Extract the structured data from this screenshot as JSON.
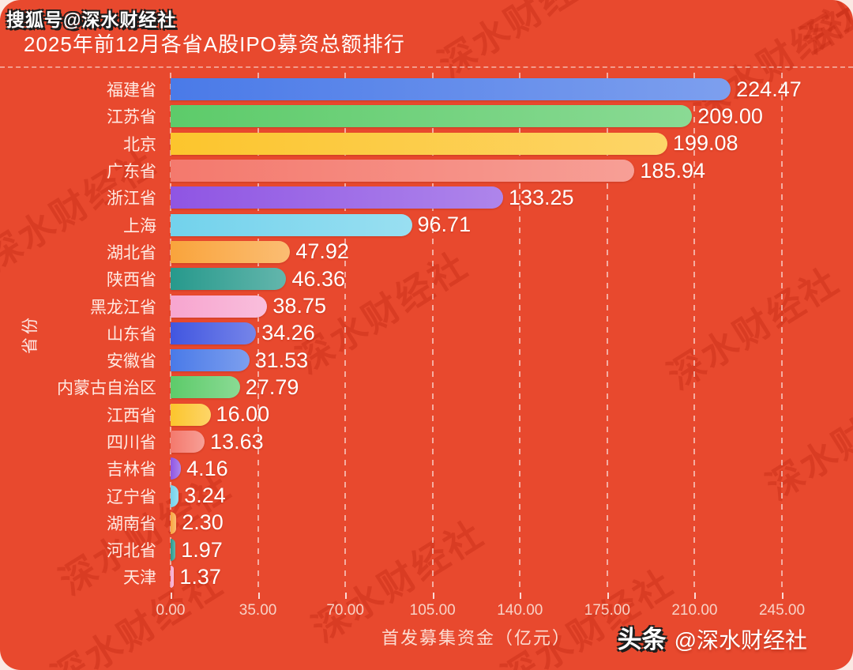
{
  "page": {
    "watermark_text": "深水财经社",
    "card_bg": "#E8492E",
    "outer_bg": "#FBE9E3"
  },
  "header": {
    "badge": "搜狐号@深水财经社",
    "title": "2025年前12月各省A股IPO募资总额排行"
  },
  "footer": {
    "brand_bold": "头条",
    "brand_handle": "@深水财经社"
  },
  "chart_data": {
    "type": "bar",
    "orientation": "horizontal",
    "title": "2025年前12月各省A股IPO募资总额排行",
    "xlabel": "首发募集资金（亿元）",
    "ylabel": "省份",
    "xlim": [
      0,
      245
    ],
    "x_ticks": [
      "0.00",
      "35.00",
      "70.00",
      "105.00",
      "140.00",
      "175.00",
      "210.00",
      "245.00"
    ],
    "grid": "dashed-vertical-white",
    "value_format": "2-decimals",
    "categories": [
      "福建省",
      "江苏省",
      "北京",
      "广东省",
      "浙江省",
      "上海",
      "湖北省",
      "陕西省",
      "黑龙江省",
      "山东省",
      "安徽省",
      "内蒙古自治区",
      "江西省",
      "四川省",
      "吉林省",
      "辽宁省",
      "湖南省",
      "河北省",
      "天津"
    ],
    "values": [
      224.47,
      209.0,
      199.08,
      185.94,
      133.25,
      96.71,
      47.92,
      46.36,
      38.75,
      34.26,
      31.53,
      27.79,
      16.0,
      13.63,
      4.16,
      3.24,
      2.3,
      1.97,
      1.37
    ],
    "bar_colors": [
      "#4A7AE8",
      "#5DCB6A",
      "#FCC52D",
      "#F4796D",
      "#8F55E3",
      "#72D2EC",
      "#F9A43C",
      "#27998C",
      "#F7A5CF",
      "#4156E0",
      "#4A7AE8",
      "#5DCB6A",
      "#FCC52D",
      "#F4796D",
      "#8F55E3",
      "#72D2EC",
      "#F9A43C",
      "#27998C",
      "#F7A5CF"
    ]
  }
}
